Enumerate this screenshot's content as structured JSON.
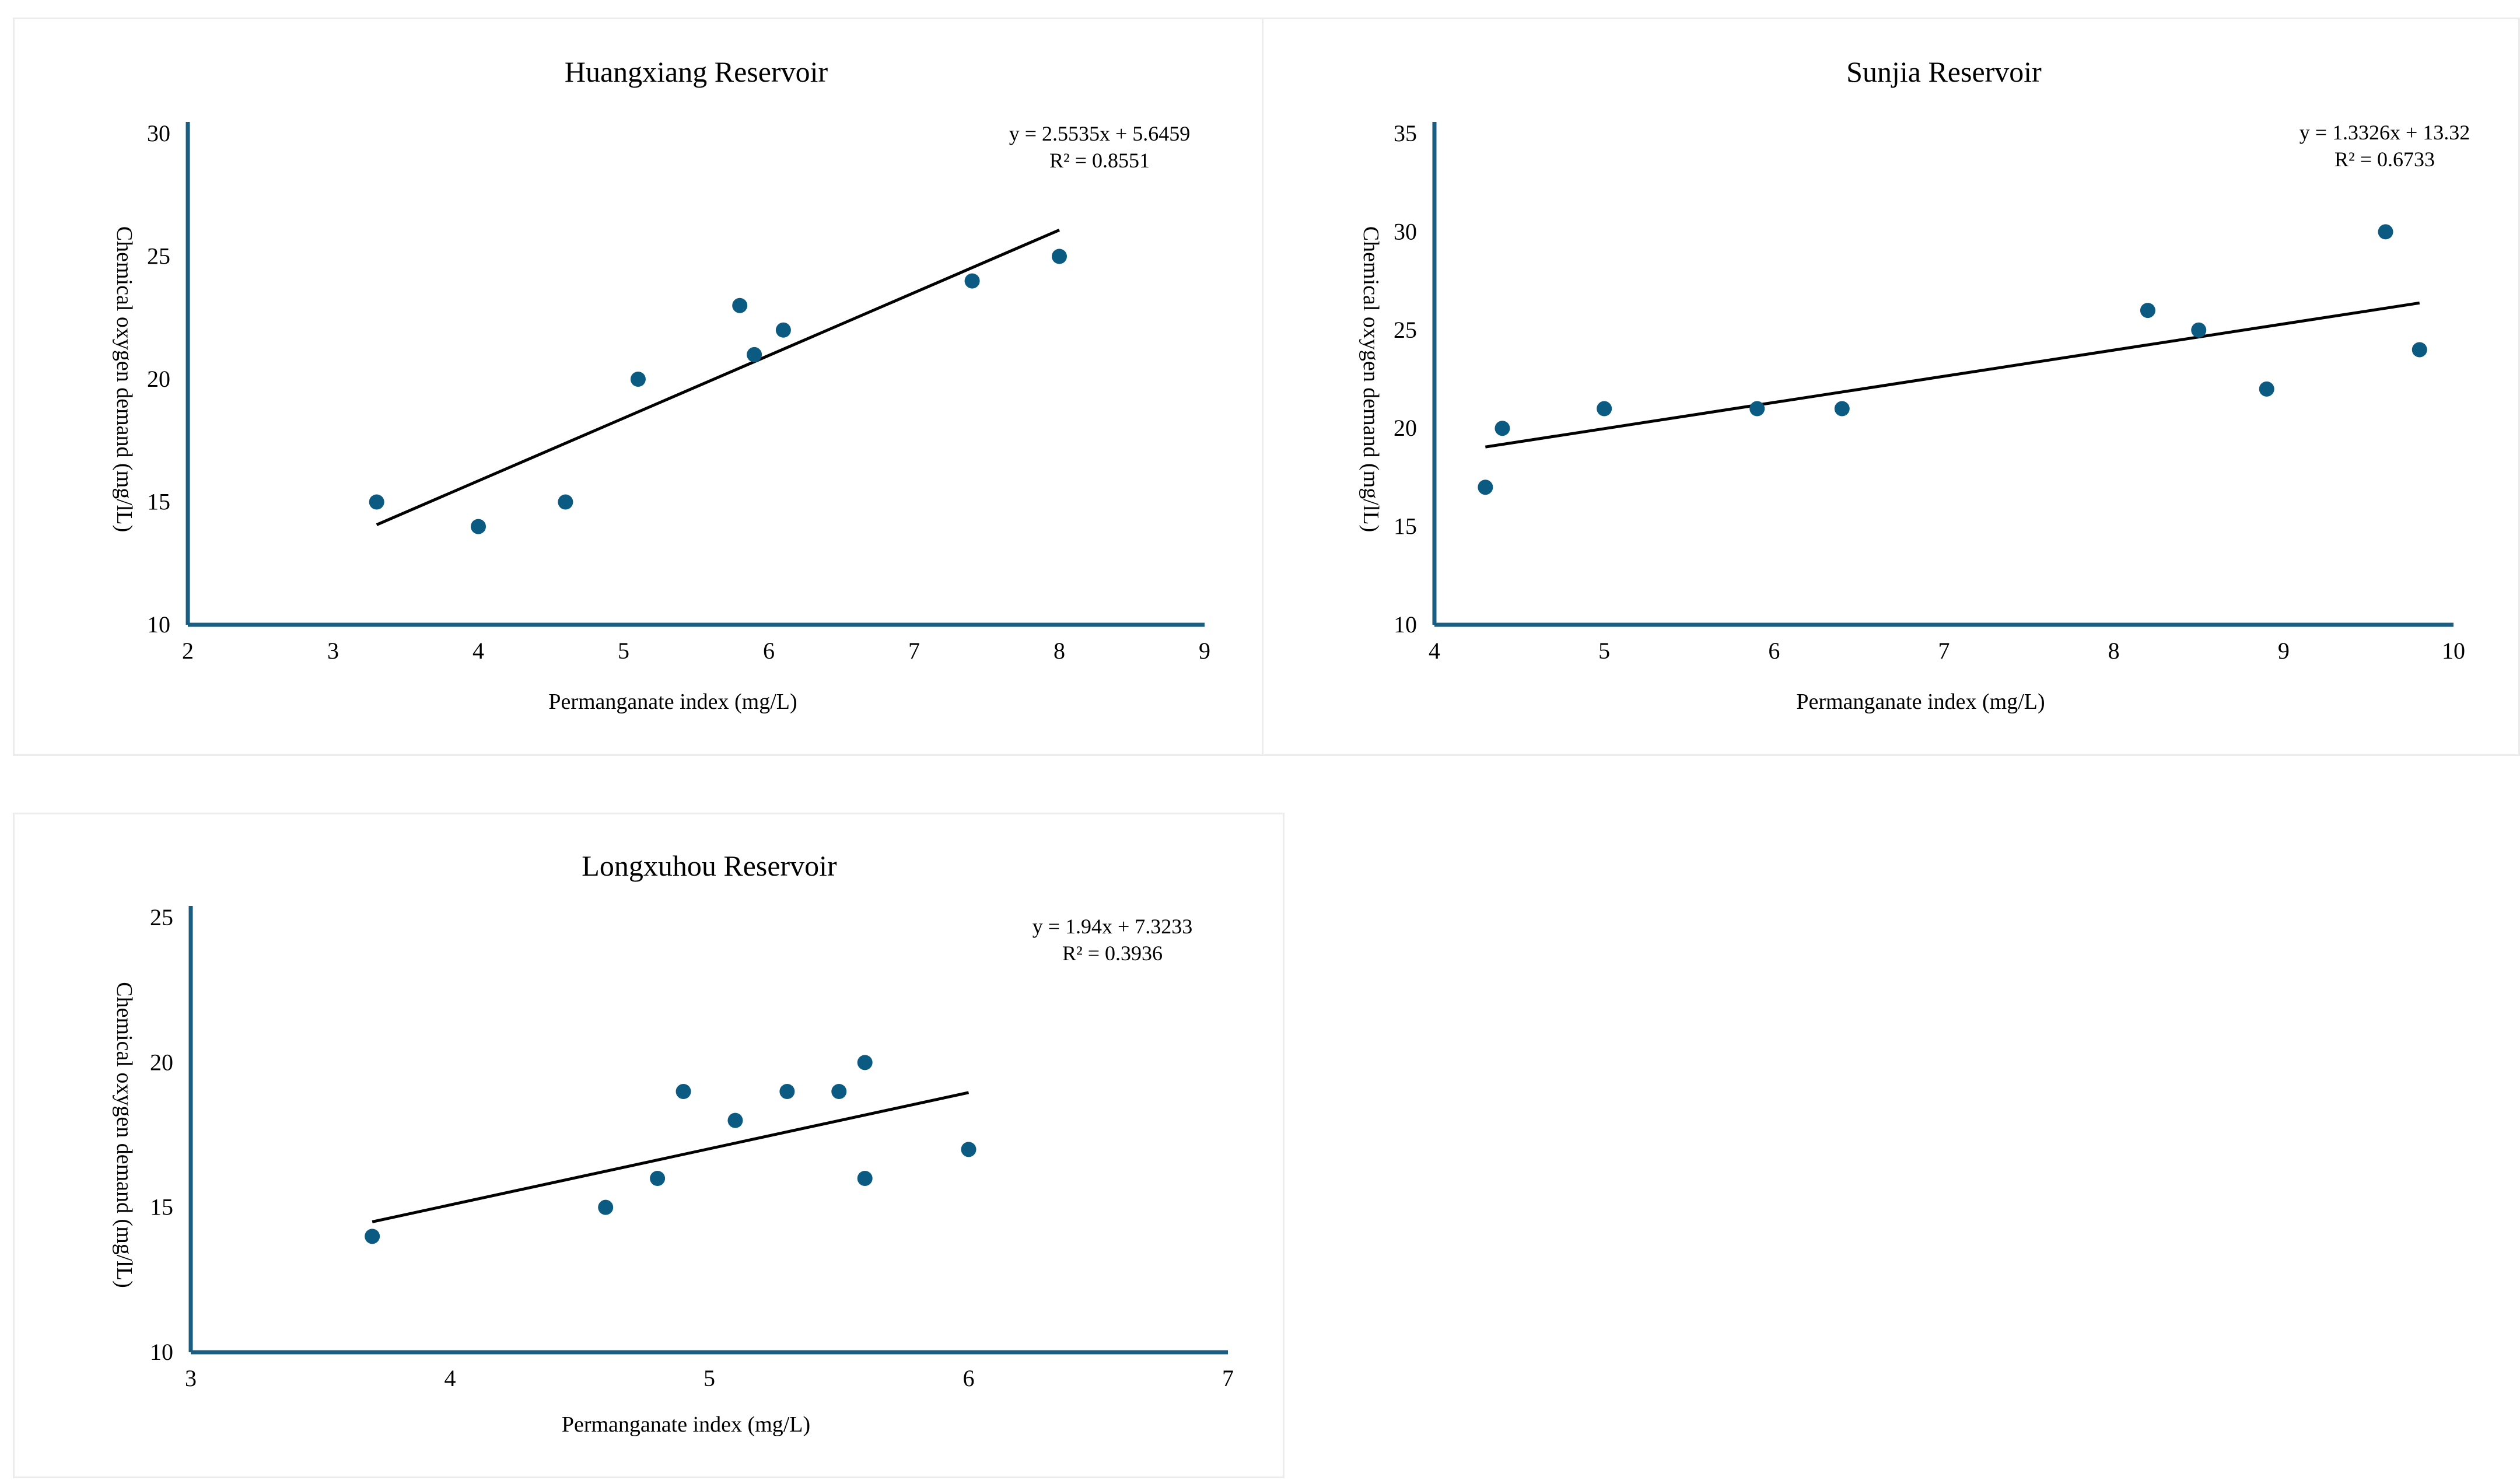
{
  "chart_data": [
    {
      "type": "scatter",
      "title": "Huangxiang Reservoir",
      "xlabel": "Permanganate index (mg/L)",
      "ylabel": "Chemical oxygen demand (mg/lL)",
      "xlim": [
        2,
        9
      ],
      "ylim": [
        10,
        30
      ],
      "xticks": [
        2,
        3,
        4,
        5,
        6,
        7,
        8,
        9
      ],
      "yticks": [
        10,
        15,
        20,
        25,
        30
      ],
      "points": [
        {
          "x": 3.3,
          "y": 15
        },
        {
          "x": 4.0,
          "y": 14
        },
        {
          "x": 4.6,
          "y": 15
        },
        {
          "x": 5.1,
          "y": 20
        },
        {
          "x": 5.8,
          "y": 23
        },
        {
          "x": 5.9,
          "y": 21
        },
        {
          "x": 6.1,
          "y": 22
        },
        {
          "x": 7.4,
          "y": 24
        },
        {
          "x": 8.0,
          "y": 25
        }
      ],
      "trendline": {
        "slope": 2.5535,
        "intercept": 5.6459,
        "x_range": [
          3.3,
          8.0
        ]
      },
      "equation": "y = 2.5535x + 5.6459",
      "r2": "R² = 0.8551",
      "grid": false,
      "color": "#0b5a82"
    },
    {
      "type": "scatter",
      "title": "Sunjia Reservoir",
      "xlabel": "Permanganate index (mg/L)",
      "ylabel": "Chemical oxygen demand (mg/lL)",
      "xlim": [
        4,
        10
      ],
      "ylim": [
        10,
        35
      ],
      "xticks": [
        4,
        5,
        6,
        7,
        8,
        9,
        10
      ],
      "yticks": [
        10,
        15,
        20,
        25,
        30,
        35
      ],
      "points": [
        {
          "x": 4.3,
          "y": 17
        },
        {
          "x": 4.4,
          "y": 20
        },
        {
          "x": 5.0,
          "y": 21
        },
        {
          "x": 5.9,
          "y": 21
        },
        {
          "x": 6.4,
          "y": 21
        },
        {
          "x": 8.2,
          "y": 26
        },
        {
          "x": 8.5,
          "y": 25
        },
        {
          "x": 8.9,
          "y": 22
        },
        {
          "x": 9.6,
          "y": 30
        },
        {
          "x": 9.8,
          "y": 24
        }
      ],
      "trendline": {
        "slope": 1.3326,
        "intercept": 13.32,
        "x_range": [
          4.3,
          9.8
        ]
      },
      "equation": "y = 1.3326x + 13.32",
      "r2": "R² = 0.6733",
      "grid": false,
      "color": "#0b5a82"
    },
    {
      "type": "scatter",
      "title": "Longxuhou Reservoir",
      "xlabel": "Permanganate index (mg/L)",
      "ylabel": "Chemical oxygen demand (mg/lL)",
      "xlim": [
        3,
        7
      ],
      "ylim": [
        10,
        25
      ],
      "xticks": [
        3,
        4,
        5,
        6,
        7
      ],
      "yticks": [
        10,
        15,
        20,
        25
      ],
      "points": [
        {
          "x": 3.7,
          "y": 14
        },
        {
          "x": 4.6,
          "y": 15
        },
        {
          "x": 4.8,
          "y": 16
        },
        {
          "x": 4.9,
          "y": 19
        },
        {
          "x": 5.1,
          "y": 18
        },
        {
          "x": 5.3,
          "y": 19
        },
        {
          "x": 5.5,
          "y": 19
        },
        {
          "x": 5.6,
          "y": 20
        },
        {
          "x": 5.6,
          "y": 16
        },
        {
          "x": 6.0,
          "y": 17
        }
      ],
      "trendline": {
        "slope": 1.94,
        "intercept": 7.3233,
        "x_range": [
          3.7,
          6.0
        ]
      },
      "equation": "y = 1.94x + 7.3233",
      "r2": "R² = 0.3936",
      "grid": false,
      "color": "#0b5a82"
    }
  ]
}
